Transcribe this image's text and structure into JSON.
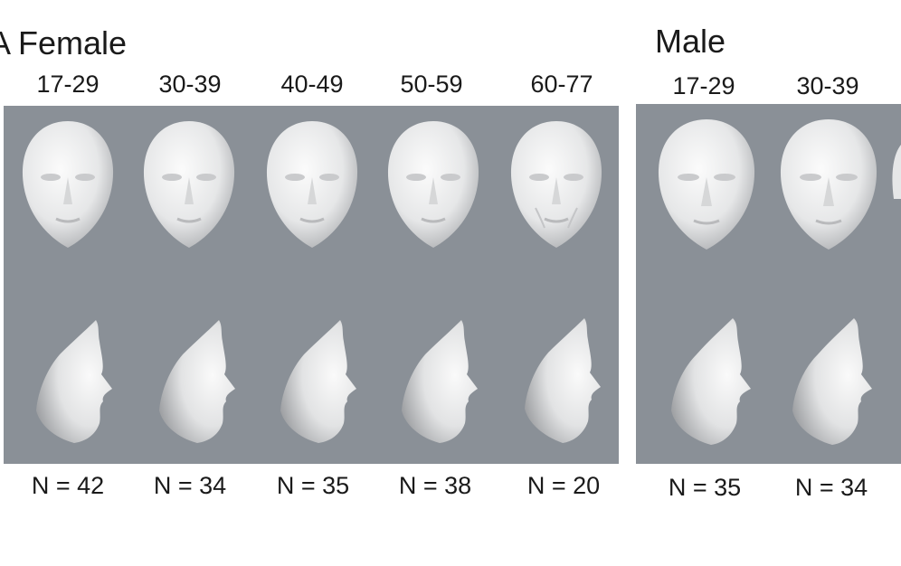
{
  "panel_letter": "A",
  "groups": [
    {
      "title": "Female",
      "ages": [
        "17-29",
        "30-39",
        "40-49",
        "50-59",
        "60-77"
      ],
      "counts": [
        "N = 42",
        "N = 34",
        "N = 35",
        "N = 38",
        "N = 20"
      ]
    },
    {
      "title": "Male",
      "ages": [
        "17-29",
        "30-39"
      ],
      "counts": [
        "N = 35",
        "N = 34"
      ]
    }
  ],
  "colors": {
    "panel_bg": "#8a9097",
    "face_light": "#f4f4f4",
    "face_shadow": "#9c9ea1"
  },
  "icons": {
    "frontal": "frontal-face-render",
    "profile": "profile-face-render"
  }
}
